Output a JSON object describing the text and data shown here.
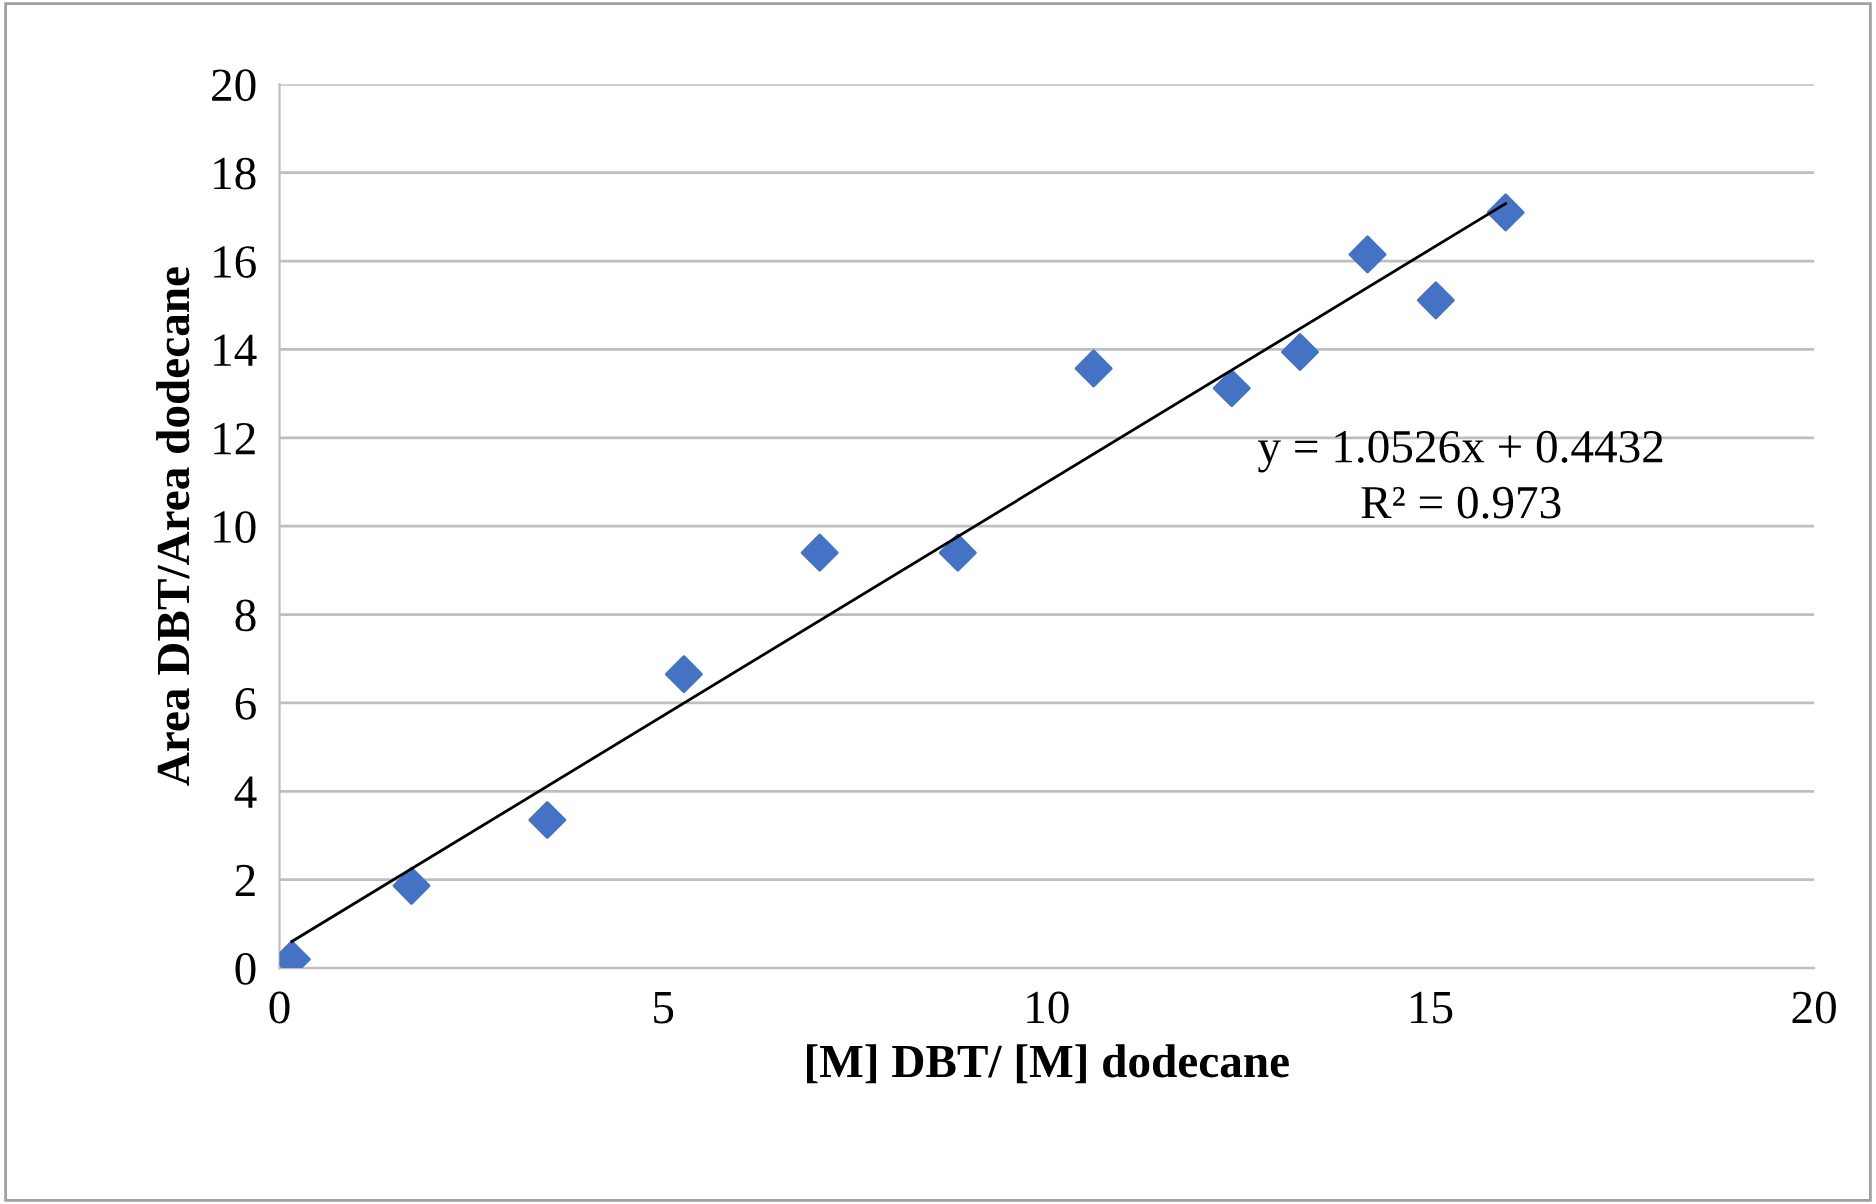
{
  "chart_data": {
    "type": "scatter",
    "xlabel": "[M] DBT/ [M] dodecane",
    "ylabel": "Area DBT/Area dodecane",
    "series": [
      {
        "color": "#4472c4",
        "marker": "diamond",
        "x": [
          0.16,
          1.72,
          3.49,
          5.27,
          7.04,
          8.84,
          10.61,
          12.41,
          13.3,
          14.18,
          15.07,
          15.98
        ],
        "values": [
          0.2,
          1.86,
          3.35,
          6.65,
          9.4,
          9.4,
          13.57,
          13.12,
          13.94,
          16.15,
          15.11,
          17.1
        ]
      },
      {
        "type": "line",
        "color": "#000000",
        "marker": "none",
        "x": [
          0.16,
          15.98
        ],
        "values": [
          0.6,
          17.3
        ]
      }
    ],
    "annotations": [
      "y = 1.0526x + 0.4432",
      "R² = 0.973"
    ],
    "xlim": [
      0,
      20
    ],
    "ylim": [
      0,
      20
    ],
    "xticks": [
      0,
      5,
      10,
      15,
      20
    ],
    "yticks": [
      0,
      2,
      4,
      6,
      8,
      10,
      12,
      14,
      16,
      18,
      20
    ],
    "grid": "y",
    "legend": false
  }
}
